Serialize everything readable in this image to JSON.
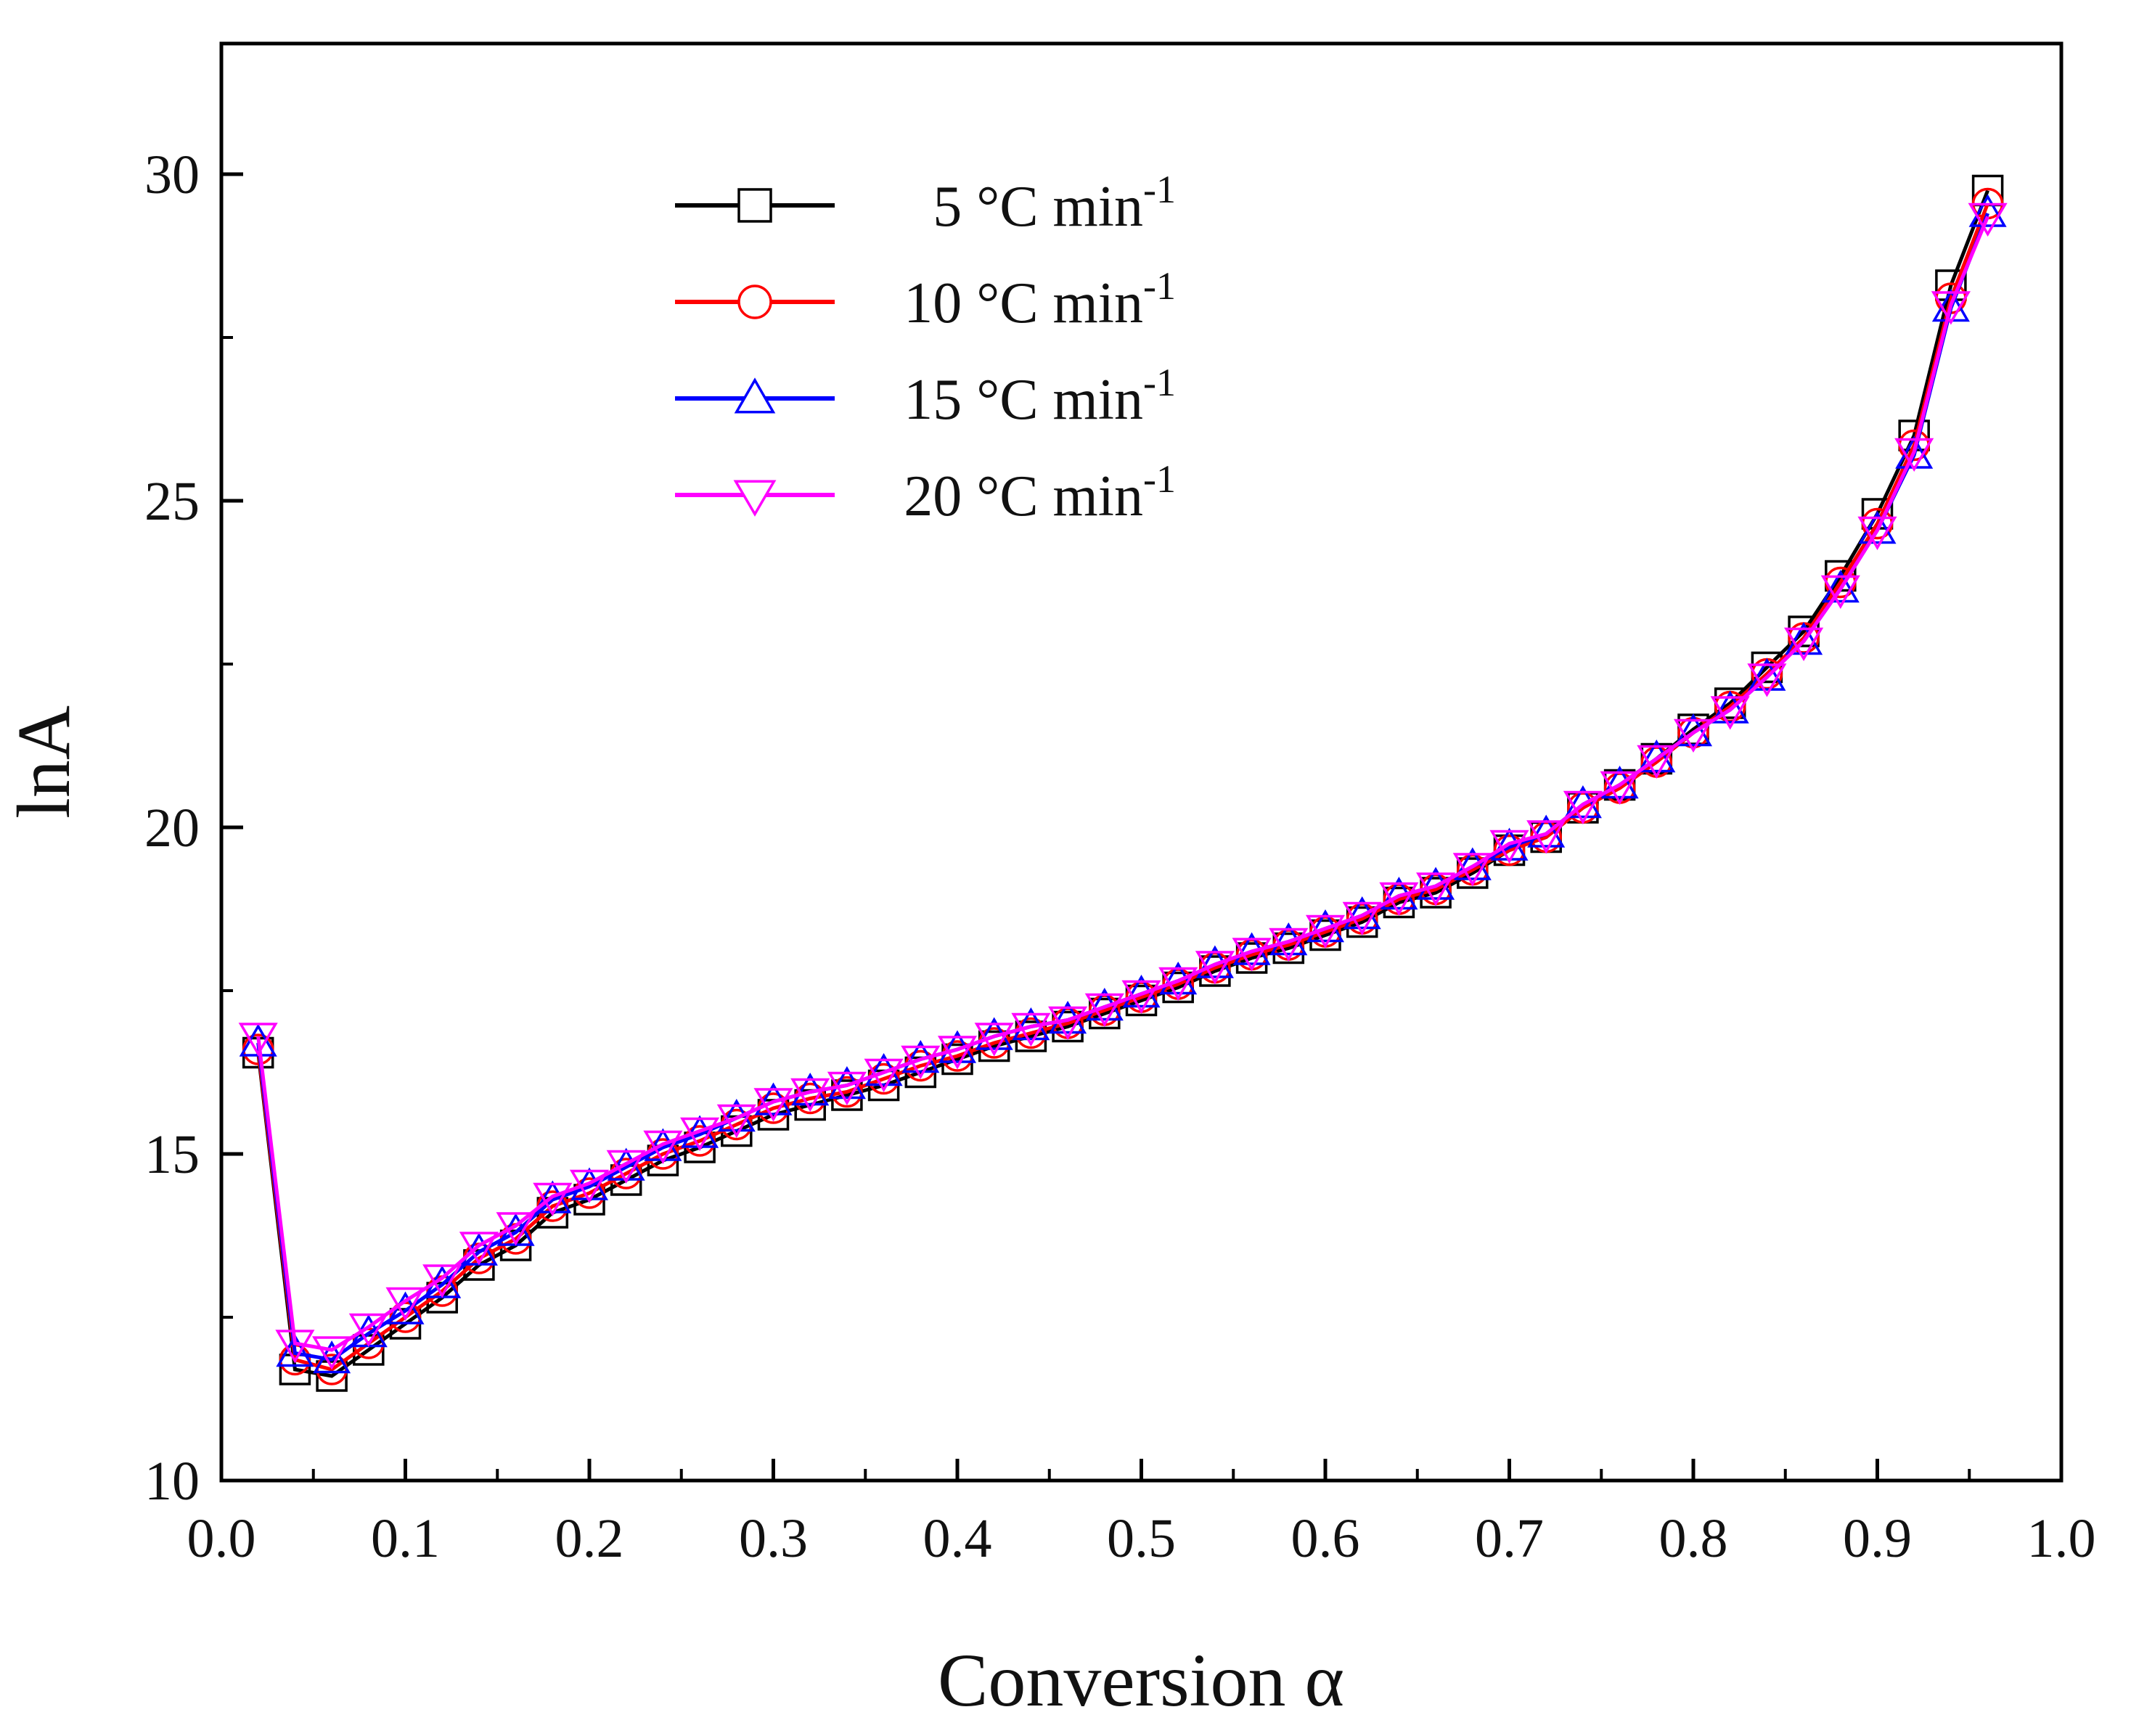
{
  "chart_data": {
    "type": "line",
    "title": "",
    "xlabel": "Conversion α",
    "ylabel": "lnA",
    "xlim": [
      0.0,
      1.0
    ],
    "ylim": [
      10,
      32
    ],
    "xticks": [
      "0.0",
      "0.1",
      "0.2",
      "0.3",
      "0.4",
      "0.5",
      "0.6",
      "0.7",
      "0.8",
      "0.9",
      "1.0"
    ],
    "yticks": [
      "10",
      "15",
      "20",
      "25",
      "30"
    ],
    "x": [
      0.02,
      0.04,
      0.06,
      0.08,
      0.1,
      0.12,
      0.14,
      0.16,
      0.18,
      0.2,
      0.22,
      0.24,
      0.26,
      0.28,
      0.3,
      0.32,
      0.34,
      0.36,
      0.38,
      0.4,
      0.42,
      0.44,
      0.46,
      0.48,
      0.5,
      0.52,
      0.54,
      0.56,
      0.58,
      0.6,
      0.62,
      0.64,
      0.66,
      0.68,
      0.7,
      0.72,
      0.74,
      0.76,
      0.78,
      0.8,
      0.82,
      0.84,
      0.86,
      0.88,
      0.9,
      0.92,
      0.94,
      0.96
    ],
    "legend_position": "top-center",
    "series": [
      {
        "name": "5 °C min-1",
        "label_main": "5 °C min",
        "label_sup": "-1",
        "color": "#000000",
        "marker": "square",
        "values": [
          16.55,
          11.7,
          11.6,
          12.0,
          12.4,
          12.8,
          13.3,
          13.6,
          14.1,
          14.3,
          14.6,
          14.9,
          15.1,
          15.35,
          15.6,
          15.75,
          15.9,
          16.05,
          16.25,
          16.45,
          16.65,
          16.8,
          16.95,
          17.15,
          17.35,
          17.55,
          17.8,
          18.0,
          18.15,
          18.35,
          18.55,
          18.85,
          19.0,
          19.3,
          19.65,
          19.85,
          20.3,
          20.65,
          21.05,
          21.5,
          21.9,
          22.45,
          23.0,
          23.85,
          24.8,
          26.0,
          28.3,
          29.75
        ]
      },
      {
        "name": "10 °C min-1",
        "label_main": "10 °C min",
        "label_sup": "-1",
        "color": "#ff0000",
        "marker": "circle",
        "values": [
          16.6,
          11.85,
          11.7,
          12.1,
          12.5,
          12.9,
          13.4,
          13.7,
          14.2,
          14.4,
          14.7,
          15.0,
          15.2,
          15.45,
          15.7,
          15.85,
          15.95,
          16.15,
          16.35,
          16.5,
          16.7,
          16.85,
          17.0,
          17.2,
          17.4,
          17.6,
          17.85,
          18.05,
          18.2,
          18.4,
          18.6,
          18.9,
          19.05,
          19.35,
          19.65,
          19.85,
          20.3,
          20.6,
          21.0,
          21.45,
          21.85,
          22.35,
          22.9,
          23.75,
          24.65,
          25.85,
          28.1,
          29.55
        ]
      },
      {
        "name": "15 °C min-1",
        "label_main": "15 °C min",
        "label_sup": "-1",
        "color": "#0000ff",
        "marker": "triangle-up",
        "values": [
          16.7,
          11.95,
          11.85,
          12.25,
          12.6,
          13.0,
          13.5,
          13.8,
          14.3,
          14.5,
          14.8,
          15.1,
          15.3,
          15.55,
          15.8,
          15.95,
          16.05,
          16.25,
          16.45,
          16.6,
          16.8,
          16.95,
          17.05,
          17.25,
          17.45,
          17.65,
          17.9,
          18.1,
          18.25,
          18.45,
          18.65,
          18.95,
          19.1,
          19.4,
          19.7,
          19.9,
          20.35,
          20.65,
          21.05,
          21.45,
          21.8,
          22.3,
          22.85,
          23.65,
          24.55,
          25.7,
          27.95,
          29.4
        ]
      },
      {
        "name": "20 °C min-1",
        "label_main": "20 °C min",
        "label_sup": "-1",
        "color": "#ff00ff",
        "marker": "triangle-down",
        "values": [
          16.8,
          12.1,
          12.0,
          12.35,
          12.75,
          13.1,
          13.6,
          13.9,
          14.35,
          14.55,
          14.85,
          15.15,
          15.35,
          15.55,
          15.8,
          15.95,
          16.05,
          16.25,
          16.45,
          16.6,
          16.8,
          16.95,
          17.05,
          17.25,
          17.45,
          17.65,
          17.9,
          18.1,
          18.25,
          18.45,
          18.65,
          18.95,
          19.1,
          19.4,
          19.75,
          19.9,
          20.35,
          20.65,
          21.05,
          21.45,
          21.8,
          22.3,
          22.85,
          23.65,
          24.55,
          25.75,
          28.0,
          29.35
        ]
      }
    ]
  }
}
